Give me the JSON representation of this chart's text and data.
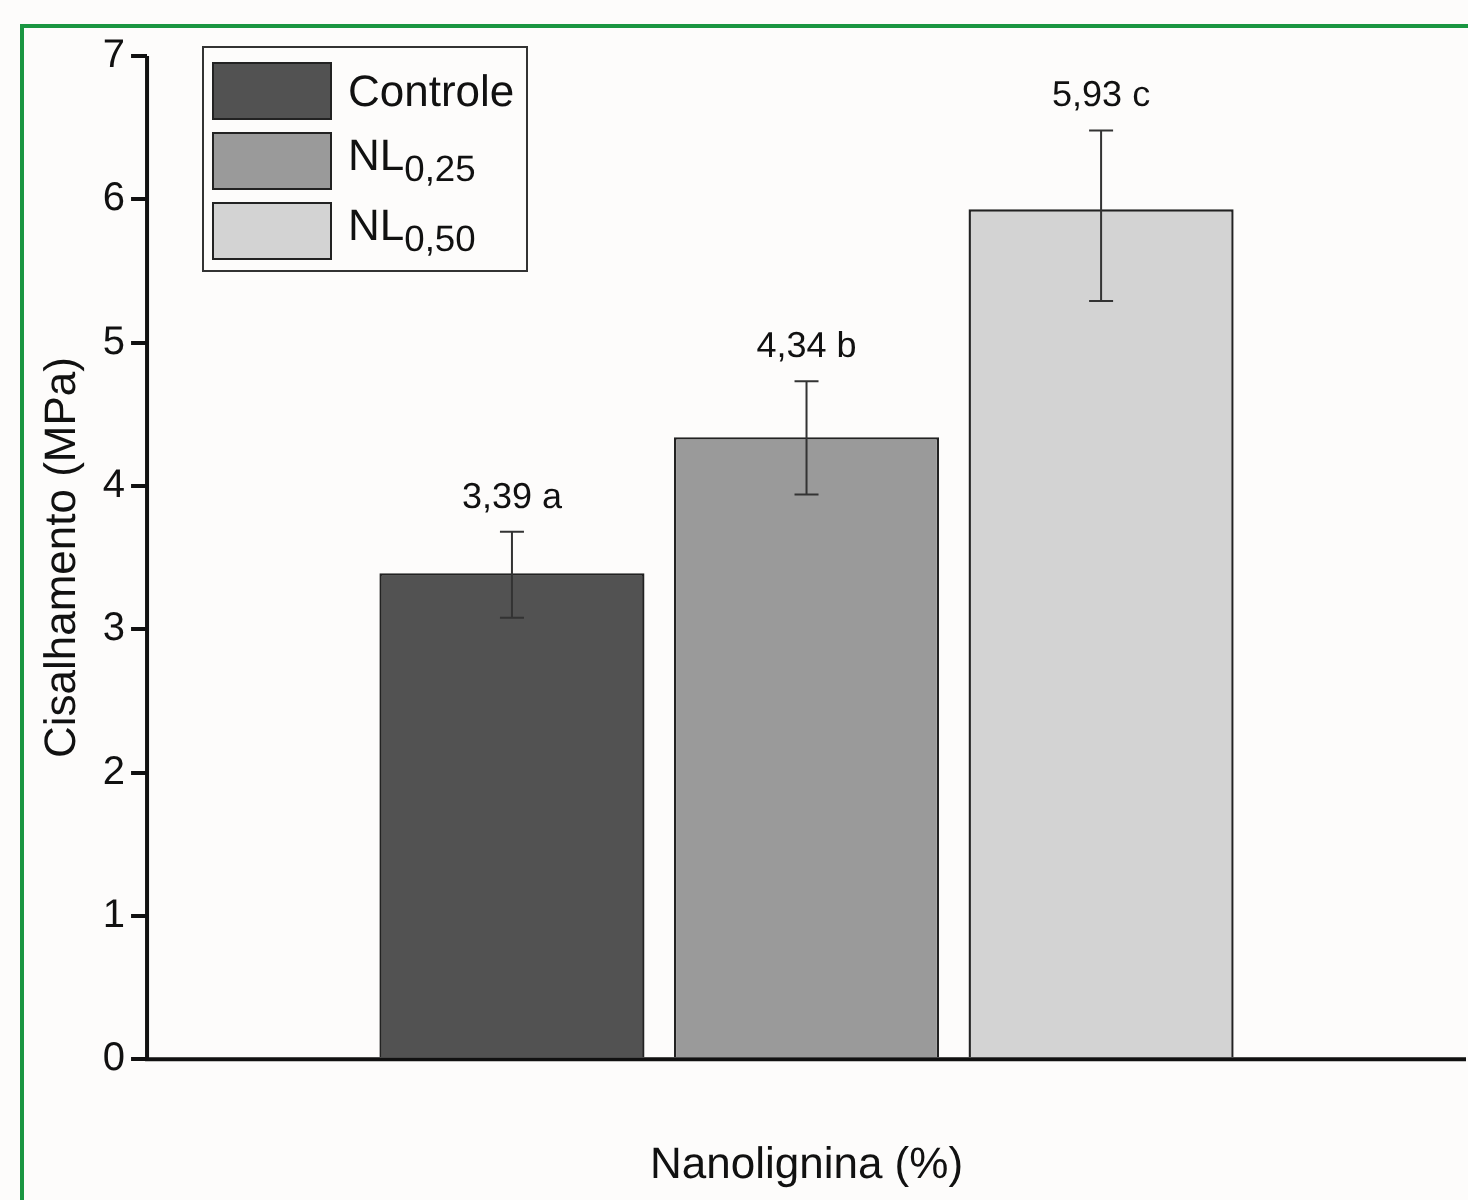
{
  "chart_data": {
    "type": "bar",
    "xlabel": "Nanolignina (%)",
    "ylabel": "Cisalhamento (MPa)",
    "categories": [
      null
    ],
    "series": [
      {
        "name": "Controle",
        "color": "#525252",
        "values": [
          3.39
        ],
        "errors": [
          [
            3.08,
            3.68
          ]
        ],
        "value_labels": [
          "3,39 a"
        ]
      },
      {
        "name": "NL$_{0,25}$",
        "color": "#9a9a9a",
        "values": [
          4.34
        ],
        "errors": [
          [
            3.94,
            4.73
          ]
        ],
        "value_labels": [
          "4,34 b"
        ]
      },
      {
        "name": "NL$_{0,50}$",
        "color": "#d3d3d3",
        "values": [
          5.93
        ],
        "errors": [
          [
            5.29,
            6.48
          ]
        ],
        "value_labels": [
          "5,93 c"
        ]
      }
    ],
    "ylim": [
      0,
      7
    ],
    "yticks": [
      0,
      1,
      2,
      3,
      4,
      5,
      6,
      7
    ],
    "grid": false,
    "legend": "top left"
  }
}
